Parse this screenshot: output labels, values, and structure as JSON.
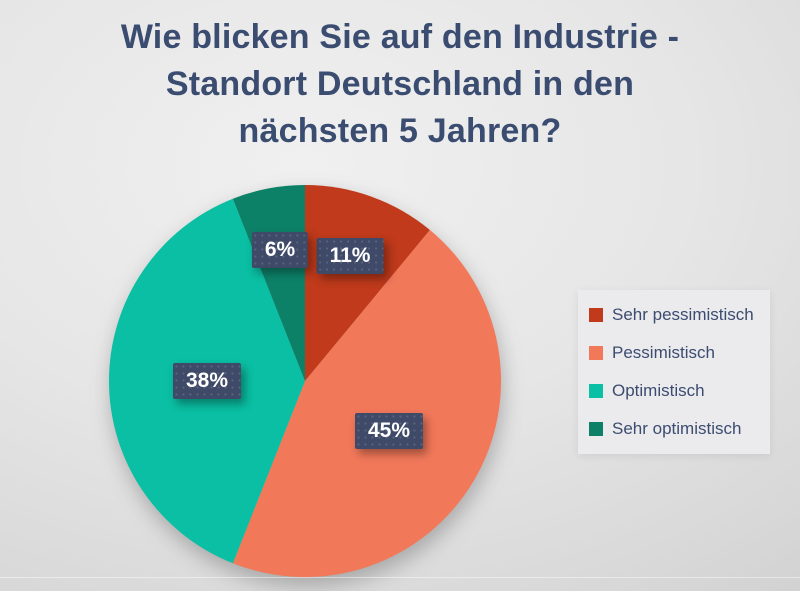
{
  "title_lines": [
    "Wie blicken Sie auf den Industrie -",
    "Standort Deutschland in den",
    "nächsten 5 Jahren?"
  ],
  "chart_data": {
    "type": "pie",
    "title": "Wie blicken Sie auf den Industrie - Standort Deutschland in den nächsten 5 Jahren?",
    "direction": "clockwise",
    "start_angle_deg": 0,
    "legend_position": "right",
    "slices": [
      {
        "label": "Sehr pessimistisch",
        "value": 11,
        "display": "11%",
        "color": "#c03a1b"
      },
      {
        "label": "Pessimistisch",
        "value": 45,
        "display": "45%",
        "color": "#f2785a"
      },
      {
        "label": "Optimistisch",
        "value": 38,
        "display": "38%",
        "color": "#0abfa3"
      },
      {
        "label": "Sehr optimistisch",
        "value": 6,
        "display": "6%",
        "color": "#0d8168"
      }
    ]
  },
  "colors": {
    "title_text": "#3b4c71",
    "label_box_bg": "#3f4a68",
    "label_text": "#ffffff",
    "legend_bg": "#ebebed",
    "legend_text": "#3c4c70"
  }
}
